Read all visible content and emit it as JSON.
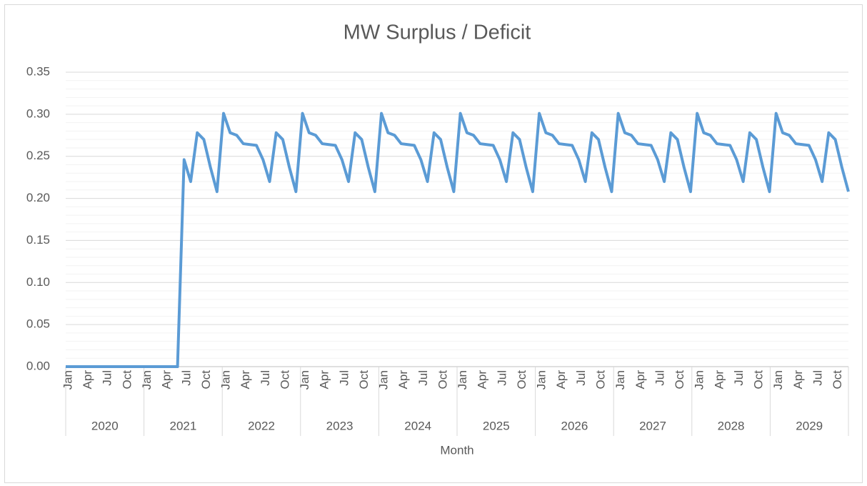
{
  "chart_data": {
    "type": "line",
    "title": "MW Surplus / Deficit",
    "x_label": "Month",
    "categories": [
      "Jan",
      null,
      null,
      "Apr",
      null,
      null,
      "Jul",
      null,
      null,
      "Oct",
      null,
      null,
      "Jan",
      null,
      null,
      "Apr",
      null,
      null,
      "Jul",
      null,
      null,
      "Oct",
      null,
      null,
      "Jan",
      null,
      null,
      "Apr",
      null,
      null,
      "Jul",
      null,
      null,
      "Oct",
      null,
      null,
      "Jan",
      null,
      null,
      "Apr",
      null,
      null,
      "Jul",
      null,
      null,
      "Oct",
      null,
      null,
      "Jan",
      null,
      null,
      "Apr",
      null,
      null,
      "Jul",
      null,
      null,
      "Oct",
      null,
      null,
      "Jan",
      null,
      null,
      "Apr",
      null,
      null,
      "Jul",
      null,
      null,
      "Oct",
      null,
      null,
      "Jan",
      null,
      null,
      "Apr",
      null,
      null,
      "Jul",
      null,
      null,
      "Oct",
      null,
      null,
      "Jan",
      null,
      null,
      "Apr",
      null,
      null,
      "Jul",
      null,
      null,
      "Oct",
      null,
      null,
      "Jan",
      null,
      null,
      "Apr",
      null,
      null,
      "Jul",
      null,
      null,
      "Oct",
      null,
      null,
      "Jan",
      null,
      null,
      "Apr",
      null,
      null,
      "Jul",
      null,
      null,
      "Oct",
      null,
      null
    ],
    "category_groups": [
      "2020",
      "2021",
      "2022",
      "2023",
      "2024",
      "2025",
      "2026",
      "2027",
      "2028",
      "2029"
    ],
    "series": [
      {
        "name": "MW Surplus / Deficit",
        "color": "#5b9bd5",
        "values": [
          0,
          0,
          0,
          0,
          0,
          0,
          0,
          0,
          0,
          0,
          0,
          0,
          0,
          0,
          0,
          0,
          0,
          0,
          0.246,
          0.22,
          0.278,
          0.27,
          0.237,
          0.208,
          0.301,
          0.278,
          0.275,
          0.265,
          0.264,
          0.263,
          0.246,
          0.22,
          0.278,
          0.27,
          0.237,
          0.208,
          0.301,
          0.278,
          0.275,
          0.265,
          0.264,
          0.263,
          0.246,
          0.22,
          0.278,
          0.27,
          0.237,
          0.208,
          0.301,
          0.278,
          0.275,
          0.265,
          0.264,
          0.263,
          0.246,
          0.22,
          0.278,
          0.27,
          0.237,
          0.208,
          0.301,
          0.278,
          0.275,
          0.265,
          0.264,
          0.263,
          0.246,
          0.22,
          0.278,
          0.27,
          0.237,
          0.208,
          0.301,
          0.278,
          0.275,
          0.265,
          0.264,
          0.263,
          0.246,
          0.22,
          0.278,
          0.27,
          0.237,
          0.208,
          0.301,
          0.278,
          0.275,
          0.265,
          0.264,
          0.263,
          0.246,
          0.22,
          0.278,
          0.27,
          0.237,
          0.208,
          0.301,
          0.278,
          0.275,
          0.265,
          0.264,
          0.263,
          0.246,
          0.22,
          0.278,
          0.27,
          0.237,
          0.208,
          0.301,
          0.278,
          0.275,
          0.265,
          0.264,
          0.263,
          0.246,
          0.22,
          0.278,
          0.27,
          0.237,
          0.208
        ]
      }
    ],
    "ylim": [
      0,
      0.35
    ],
    "yticks": [
      {
        "value": 0,
        "label": "0.00"
      },
      {
        "value": 0.05,
        "label": "0.05"
      },
      {
        "value": 0.1,
        "label": "0.10"
      },
      {
        "value": 0.15,
        "label": "0.15"
      },
      {
        "value": 0.2,
        "label": "0.20"
      },
      {
        "value": 0.25,
        "label": "0.25"
      },
      {
        "value": 0.3,
        "label": "0.30"
      },
      {
        "value": 0.35,
        "label": "0.35"
      }
    ],
    "grid": true,
    "minor_grid_divisions": 5,
    "legend": false
  }
}
